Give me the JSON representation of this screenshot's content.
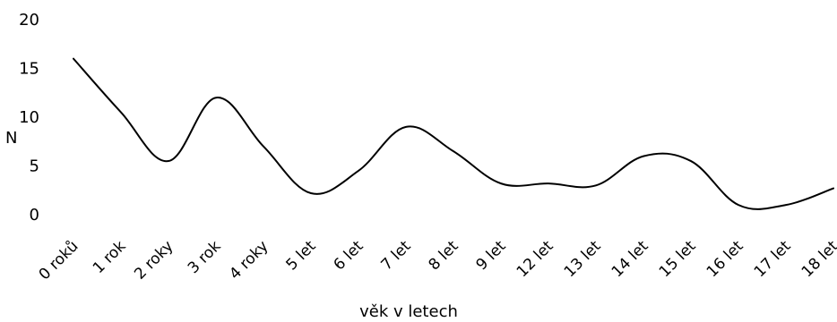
{
  "chart_data": {
    "type": "line",
    "title": "",
    "xlabel": "věk v letech",
    "ylabel": "N",
    "categories": [
      "0 roků",
      "1 rok",
      "2 roky",
      "3 rok",
      "4 roky",
      "5 let",
      "6 let",
      "7 let",
      "8 let",
      "9 let",
      "12 let",
      "13 let",
      "14 let",
      "15 let",
      "16 let",
      "17 let",
      "18 let"
    ],
    "series": [
      {
        "values": [
          16,
          10.5,
          5.5,
          12,
          7,
          2.2,
          4.5,
          9,
          6.5,
          3.2,
          3.2,
          3,
          6,
          5.5,
          1,
          1,
          2.7
        ]
      }
    ],
    "ylim": [
      0,
      20
    ],
    "yticks": [
      0,
      5,
      10,
      15,
      20
    ],
    "grid": false,
    "legend": "none",
    "line_color": "#000000"
  }
}
